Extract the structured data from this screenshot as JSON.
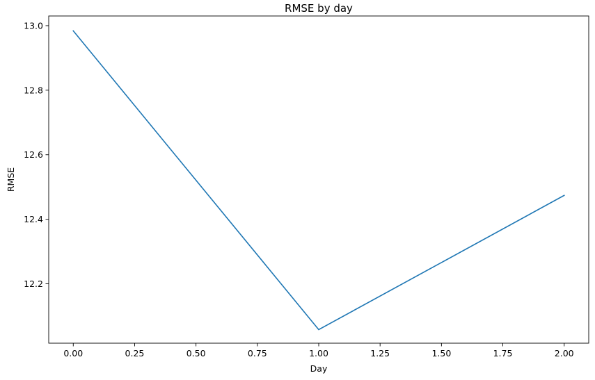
{
  "chart_data": {
    "type": "line",
    "title": "RMSE by day",
    "xlabel": "Day",
    "ylabel": "RMSE",
    "xlim": [
      -0.1,
      2.1
    ],
    "ylim": [
      12.016,
      13.03
    ],
    "xticks": [
      0.0,
      0.25,
      0.5,
      0.75,
      1.0,
      1.25,
      1.5,
      1.75,
      2.0
    ],
    "xtick_labels": [
      "0.00",
      "0.25",
      "0.50",
      "0.75",
      "1.00",
      "1.25",
      "1.50",
      "1.75",
      "2.00"
    ],
    "yticks": [
      12.2,
      12.4,
      12.6,
      12.8,
      13.0
    ],
    "ytick_labels": [
      "12.2",
      "12.4",
      "12.6",
      "12.8",
      "13.0"
    ],
    "grid": false,
    "series": [
      {
        "x": [
          0,
          1,
          2
        ],
        "values": [
          12.984,
          12.058,
          12.474
        ],
        "color": "#1f77b4"
      }
    ]
  }
}
